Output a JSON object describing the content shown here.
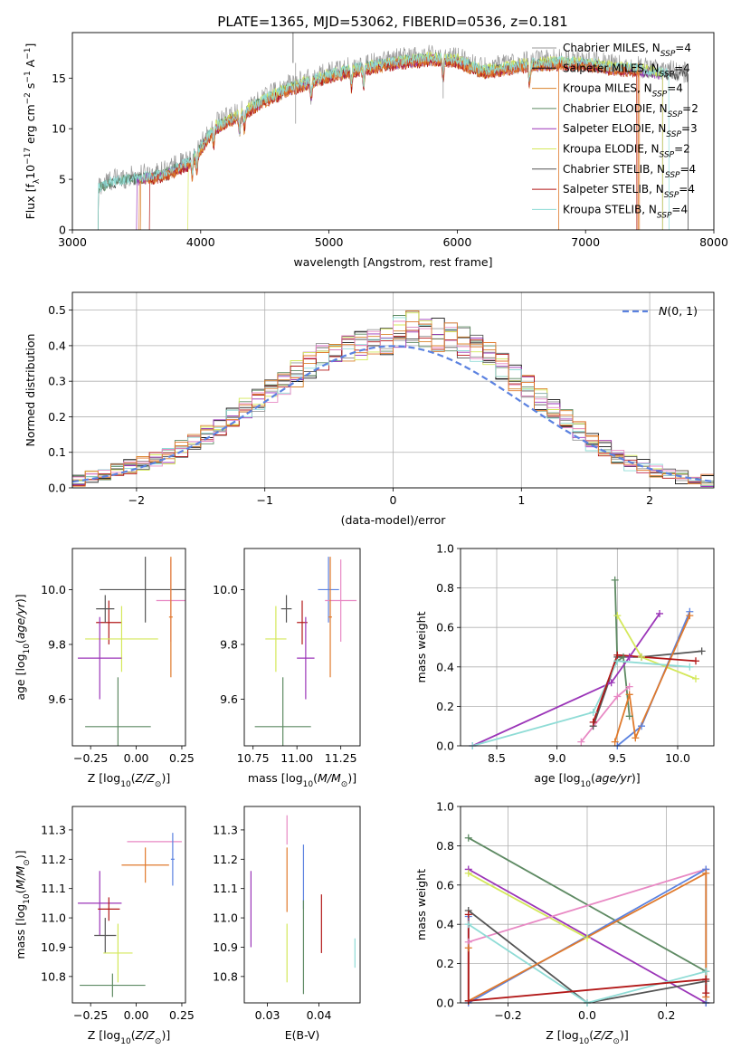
{
  "figure": {
    "title": "PLATE=1365, MJD=53062, FIBERID=0536, z=0.181",
    "colors": [
      "#999999",
      "#111111",
      "#d9822b",
      "#5e8a63",
      "#9b35b8",
      "#d4e85a",
      "#555555",
      "#b21818",
      "#8fdcd6",
      "#e889c4",
      "#5b82e0",
      "#e07a2c"
    ]
  },
  "chart_data": [
    {
      "id": "spectrum",
      "type": "line",
      "xlabel": "wavelength [Angstrom, rest frame]",
      "ylabel": "Flux [f_λ 10^-17 erg cm^-2 s^-1 A^-1]",
      "xlim": [
        3000,
        8000
      ],
      "ylim": [
        0,
        19.5
      ],
      "xticks": [
        3000,
        4000,
        5000,
        6000,
        7000,
        8000
      ],
      "yticks": [
        0,
        5,
        10,
        15
      ],
      "grid": false,
      "legend_position": "right",
      "legend": [
        {
          "label": "Chabrier MILES, N_SSP=4",
          "color": "#999999"
        },
        {
          "label": "Salpeter MILES, N_SSP=4",
          "color": "#111111"
        },
        {
          "label": "Kroupa MILES, N_SSP=4",
          "color": "#d9822b"
        },
        {
          "label": "Chabrier ELODIE, N_SSP=2",
          "color": "#5e8a63"
        },
        {
          "label": "Salpeter ELODIE, N_SSP=3",
          "color": "#9b35b8"
        },
        {
          "label": "Kroupa ELODIE, N_SSP=2",
          "color": "#d4e85a"
        },
        {
          "label": "Chabrier STELIB, N_SSP=4",
          "color": "#555555"
        },
        {
          "label": "Salpeter STELIB, N_SSP=4",
          "color": "#b21818"
        },
        {
          "label": "Kroupa STELIB, N_SSP=4",
          "color": "#8fdcd6"
        }
      ],
      "continuum": {
        "x": [
          3200,
          3300,
          3500,
          3700,
          3900,
          4000,
          4100,
          4300,
          4500,
          4700,
          5000,
          5200,
          5500,
          5800,
          6000,
          6200,
          6500,
          6800,
          7000,
          7200,
          7400,
          7600,
          7800
        ],
        "y": [
          4.0,
          4.6,
          5.0,
          5.4,
          6.5,
          8.0,
          10.0,
          11.3,
          12.8,
          14.0,
          15.2,
          15.8,
          16.5,
          16.9,
          16.7,
          15.6,
          16.2,
          16.5,
          16.4,
          16.0,
          15.8,
          15.4,
          15.2
        ]
      }
    },
    {
      "id": "residuals",
      "type": "bar",
      "xlabel": "(data-model)/error",
      "ylabel": "Normed distribution",
      "xlim": [
        -2.5,
        2.5
      ],
      "ylim": [
        0,
        0.55
      ],
      "xticks": [
        -2,
        -1,
        0,
        1,
        2
      ],
      "yticks": [
        0.0,
        0.1,
        0.2,
        0.3,
        0.4,
        0.5
      ],
      "grid": true,
      "legend_position": "top-right",
      "legend": [
        {
          "label": "N(0,1)",
          "color": "#5b82e0"
        }
      ],
      "bin_width": 0.1,
      "bin_center_values": [
        0.02,
        0.03,
        0.04,
        0.05,
        0.06,
        0.07,
        0.08,
        0.09,
        0.11,
        0.13,
        0.15,
        0.17,
        0.2,
        0.22,
        0.25,
        0.27,
        0.3,
        0.32,
        0.35,
        0.37,
        0.38,
        0.39,
        0.4,
        0.41,
        0.42,
        0.44,
        0.45,
        0.44,
        0.43,
        0.42,
        0.41,
        0.39,
        0.37,
        0.34,
        0.31,
        0.28,
        0.25,
        0.22,
        0.19,
        0.16,
        0.13,
        0.11,
        0.09,
        0.07,
        0.06,
        0.05,
        0.04,
        0.03,
        0.02,
        0.02
      ]
    },
    {
      "id": "age-vs-Z",
      "type": "scatter",
      "xlabel": "Z [log10(Z/Z_sun)]",
      "ylabel": "age [log10(age/yr)]",
      "xlim": [
        -0.35,
        0.27
      ],
      "ylim": [
        9.43,
        10.15
      ],
      "xticks": [
        -0.25,
        0.0,
        0.25
      ],
      "yticks": [
        9.6,
        9.8,
        10.0
      ],
      "grid": false,
      "points": [
        {
          "x": 0.05,
          "y": 10.0,
          "xerr": 0.25,
          "yerr": 0.12,
          "color": "#555555"
        },
        {
          "x": 0.19,
          "y": 9.96,
          "xerr": 0.08,
          "yerr": 0.15,
          "color": "#e889c4"
        },
        {
          "x": -0.15,
          "y": 9.88,
          "xerr": 0.07,
          "yerr": 0.08,
          "color": "#b21818"
        },
        {
          "x": -0.17,
          "y": 9.93,
          "xerr": 0.05,
          "yerr": 0.05,
          "color": "#555555"
        },
        {
          "x": -0.08,
          "y": 9.82,
          "xerr": 0.2,
          "yerr": 0.12,
          "color": "#d4e85a"
        },
        {
          "x": -0.2,
          "y": 9.75,
          "xerr": 0.12,
          "yerr": 0.15,
          "color": "#9b35b8"
        },
        {
          "x": -0.1,
          "y": 9.5,
          "xerr": 0.18,
          "yerr": 0.18,
          "color": "#5e8a63"
        },
        {
          "x": 0.19,
          "y": 9.9,
          "xerr": 0.01,
          "yerr": 0.22,
          "color": "#e07a2c"
        }
      ]
    },
    {
      "id": "age-vs-mass",
      "type": "scatter",
      "xlabel": "mass [log10(M/M_sun)]",
      "ylabel": "",
      "xlim": [
        10.7,
        11.36
      ],
      "ylim": [
        9.43,
        10.15
      ],
      "xticks": [
        10.75,
        11.0,
        11.25
      ],
      "yticks": [
        9.6,
        9.8,
        10.0
      ],
      "grid": false,
      "points": [
        {
          "x": 11.18,
          "y": 10.0,
          "xerr": 0.06,
          "yerr": 0.12,
          "color": "#5b82e0"
        },
        {
          "x": 11.25,
          "y": 9.96,
          "xerr": 0.09,
          "yerr": 0.15,
          "color": "#e889c4"
        },
        {
          "x": 11.03,
          "y": 9.88,
          "xerr": 0.03,
          "yerr": 0.08,
          "color": "#b21818"
        },
        {
          "x": 10.94,
          "y": 9.93,
          "xerr": 0.03,
          "yerr": 0.05,
          "color": "#555555"
        },
        {
          "x": 10.88,
          "y": 9.82,
          "xerr": 0.06,
          "yerr": 0.12,
          "color": "#d4e85a"
        },
        {
          "x": 11.05,
          "y": 9.75,
          "xerr": 0.05,
          "yerr": 0.15,
          "color": "#9b35b8"
        },
        {
          "x": 10.92,
          "y": 9.5,
          "xerr": 0.16,
          "yerr": 0.18,
          "color": "#5e8a63"
        },
        {
          "x": 11.19,
          "y": 9.9,
          "xerr": 0.01,
          "yerr": 0.22,
          "color": "#e07a2c"
        }
      ]
    },
    {
      "id": "weight-vs-age",
      "type": "line",
      "xlabel": "age [log10(age/yr)]",
      "ylabel": "mass weight",
      "xlim": [
        8.2,
        10.3
      ],
      "ylim": [
        0,
        1.0
      ],
      "xticks": [
        8.5,
        9.0,
        9.5,
        10.0
      ],
      "yticks": [
        0.0,
        0.2,
        0.4,
        0.6,
        0.8,
        1.0
      ],
      "grid": true,
      "series": [
        {
          "color": "#5e8a63",
          "x": [
            9.48,
            9.5,
            9.55,
            9.6
          ],
          "y": [
            0.84,
            0.43,
            0.45,
            0.15
          ]
        },
        {
          "color": "#555555",
          "x": [
            9.3,
            9.5,
            9.7,
            10.2
          ],
          "y": [
            0.1,
            0.45,
            0.45,
            0.48
          ]
        },
        {
          "color": "#9b35b8",
          "x": [
            8.3,
            9.45,
            9.6,
            9.85
          ],
          "y": [
            0.0,
            0.32,
            0.45,
            0.67
          ]
        },
        {
          "color": "#d4e85a",
          "x": [
            9.5,
            9.7,
            10.15
          ],
          "y": [
            0.66,
            0.45,
            0.34
          ]
        },
        {
          "color": "#8fdcd6",
          "x": [
            8.3,
            9.3,
            9.5,
            10.1
          ],
          "y": [
            0.0,
            0.17,
            0.43,
            0.4
          ]
        },
        {
          "color": "#5b82e0",
          "x": [
            9.5,
            9.7,
            10.1
          ],
          "y": [
            0.0,
            0.1,
            0.68
          ]
        },
        {
          "color": "#e07a2c",
          "x": [
            9.48,
            9.6,
            9.65,
            10.1
          ],
          "y": [
            0.02,
            0.26,
            0.04,
            0.66
          ]
        },
        {
          "color": "#e889c4",
          "x": [
            9.2,
            9.5,
            9.6
          ],
          "y": [
            0.02,
            0.25,
            0.3
          ]
        },
        {
          "color": "#b21818",
          "x": [
            9.3,
            9.5,
            10.15
          ],
          "y": [
            0.12,
            0.46,
            0.43
          ]
        }
      ]
    },
    {
      "id": "mass-vs-Z",
      "type": "scatter",
      "xlabel": "Z [log10(Z/Z_sun)]",
      "ylabel": "mass [log10(M/M_sun)]",
      "xlim": [
        -0.35,
        0.27
      ],
      "ylim": [
        10.71,
        11.38
      ],
      "xticks": [
        -0.25,
        0.0,
        0.25
      ],
      "yticks": [
        10.8,
        10.9,
        11.0,
        11.1,
        11.2,
        11.3
      ],
      "grid": false,
      "points": [
        {
          "x": 0.1,
          "y": 11.26,
          "xerr": 0.15,
          "yerr": 0.0,
          "color": "#e889c4"
        },
        {
          "x": 0.2,
          "y": 11.2,
          "xerr": 0.01,
          "yerr": 0.09,
          "color": "#5b82e0"
        },
        {
          "x": 0.05,
          "y": 11.18,
          "xerr": 0.13,
          "yerr": 0.06,
          "color": "#e07a2c"
        },
        {
          "x": -0.2,
          "y": 11.05,
          "xerr": 0.12,
          "yerr": 0.11,
          "color": "#9b35b8"
        },
        {
          "x": -0.15,
          "y": 11.03,
          "xerr": 0.06,
          "yerr": 0.04,
          "color": "#b21818"
        },
        {
          "x": -0.17,
          "y": 10.94,
          "xerr": 0.06,
          "yerr": 0.06,
          "color": "#555555"
        },
        {
          "x": -0.1,
          "y": 10.88,
          "xerr": 0.08,
          "yerr": 0.1,
          "color": "#d4e85a"
        },
        {
          "x": -0.13,
          "y": 10.77,
          "xerr": 0.18,
          "yerr": 0.04,
          "color": "#5e8a63"
        }
      ]
    },
    {
      "id": "mass-vs-ebv",
      "type": "scatter",
      "xlabel": "E(B-V)",
      "ylabel": "",
      "xlim": [
        0.0255,
        0.048
      ],
      "ylim": [
        10.71,
        11.38
      ],
      "xticks": [
        0.03,
        0.04
      ],
      "yticks": [
        10.8,
        10.9,
        11.0,
        11.1,
        11.2,
        11.3
      ],
      "grid": false,
      "points": [
        {
          "x": 0.0268,
          "y": 11.03,
          "xerr": 0,
          "yerr": 0.13,
          "color": "#9b35b8"
        },
        {
          "x": 0.0338,
          "y": 11.3,
          "xerr": 0,
          "yerr": 0.05,
          "color": "#e889c4"
        },
        {
          "x": 0.0338,
          "y": 11.13,
          "xerr": 0,
          "yerr": 0.11,
          "color": "#e07a2c"
        },
        {
          "x": 0.0338,
          "y": 10.88,
          "xerr": 0,
          "yerr": 0.1,
          "color": "#d4e85a"
        },
        {
          "x": 0.037,
          "y": 11.14,
          "xerr": 0,
          "yerr": 0.11,
          "color": "#5b82e0"
        },
        {
          "x": 0.037,
          "y": 10.9,
          "xerr": 0,
          "yerr": 0.16,
          "color": "#5e8a63"
        },
        {
          "x": 0.0405,
          "y": 10.98,
          "xerr": 0,
          "yerr": 0.1,
          "color": "#b21818"
        },
        {
          "x": 0.047,
          "y": 10.88,
          "xerr": 0,
          "yerr": 0.05,
          "color": "#8fdcd6"
        }
      ]
    },
    {
      "id": "weight-vs-Z",
      "type": "line",
      "xlabel": "Z [log10(Z/Z_sun)]",
      "ylabel": "mass weight",
      "xlim": [
        -0.32,
        0.32
      ],
      "ylim": [
        0,
        1.0
      ],
      "xticks": [
        -0.2,
        0.0,
        0.2
      ],
      "yticks": [
        0.0,
        0.2,
        0.4,
        0.6,
        0.8,
        1.0
      ],
      "grid": true,
      "series": [
        {
          "color": "#5e8a63",
          "x": [
            -0.3,
            0.3,
            0.3
          ],
          "y": [
            0.84,
            0.16,
            0.0
          ]
        },
        {
          "color": "#9b35b8",
          "x": [
            -0.3,
            0.3
          ],
          "y": [
            0.68,
            0.0
          ]
        },
        {
          "color": "#d4e85a",
          "x": [
            -0.3,
            0.0
          ],
          "y": [
            0.66,
            0.33
          ]
        },
        {
          "color": "#e889c4",
          "x": [
            -0.3,
            0.3
          ],
          "y": [
            0.31,
            0.68
          ]
        },
        {
          "color": "#555555",
          "x": [
            -0.3,
            0.0,
            0.3
          ],
          "y": [
            0.47,
            0.0,
            0.11
          ]
        },
        {
          "color": "#8fdcd6",
          "x": [
            -0.3,
            0.0,
            0.3
          ],
          "y": [
            0.4,
            0.0,
            0.16
          ]
        },
        {
          "color": "#5b82e0",
          "x": [
            -0.3,
            -0.3,
            0.3,
            0.3
          ],
          "y": [
            0.44,
            0.0,
            0.68,
            0.0
          ]
        },
        {
          "color": "#e07a2c",
          "x": [
            -0.3,
            -0.3,
            0.3,
            0.3
          ],
          "y": [
            0.28,
            0.01,
            0.66,
            0.03
          ]
        },
        {
          "color": "#b21818",
          "x": [
            -0.3,
            -0.3,
            0.3,
            0.3
          ],
          "y": [
            0.45,
            0.01,
            0.12,
            0.05
          ]
        }
      ]
    }
  ]
}
